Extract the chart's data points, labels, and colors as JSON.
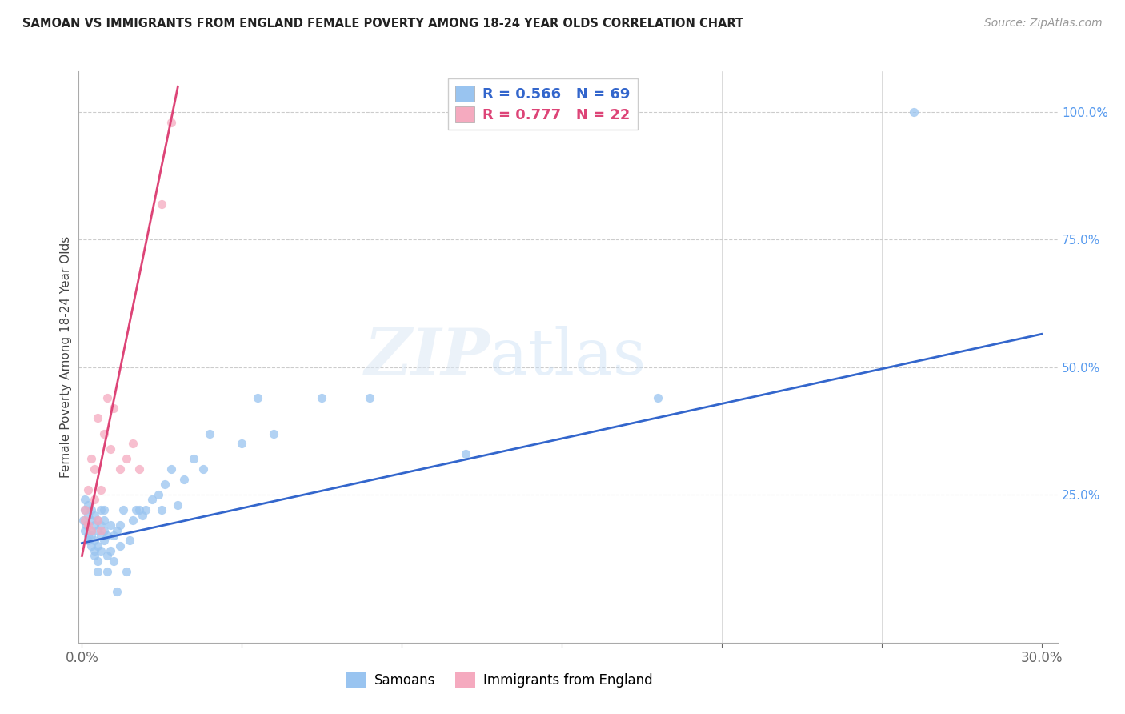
{
  "title": "SAMOAN VS IMMIGRANTS FROM ENGLAND FEMALE POVERTY AMONG 18-24 YEAR OLDS CORRELATION CHART",
  "source": "Source: ZipAtlas.com",
  "ylabel": "Female Poverty Among 18-24 Year Olds",
  "xlim_min": -0.001,
  "xlim_max": 0.305,
  "ylim_min": -0.04,
  "ylim_max": 1.08,
  "samoan_color": "#99c4f0",
  "england_color": "#f5aabf",
  "samoan_line_color": "#3366cc",
  "england_line_color": "#dd4477",
  "legend_samoan_R": "0.566",
  "legend_samoan_N": "69",
  "legend_england_R": "0.777",
  "legend_england_N": "22",
  "legend_label_samoan": "Samoans",
  "legend_label_england": "Immigrants from England",
  "watermark_zip": "ZIP",
  "watermark_atlas": "atlas",
  "background_color": "#ffffff",
  "samoans_x": [
    0.0005,
    0.001,
    0.001,
    0.001,
    0.0015,
    0.002,
    0.002,
    0.002,
    0.002,
    0.003,
    0.003,
    0.003,
    0.003,
    0.003,
    0.004,
    0.004,
    0.004,
    0.004,
    0.004,
    0.005,
    0.005,
    0.005,
    0.005,
    0.005,
    0.006,
    0.006,
    0.006,
    0.006,
    0.007,
    0.007,
    0.007,
    0.007,
    0.008,
    0.008,
    0.008,
    0.009,
    0.009,
    0.01,
    0.01,
    0.011,
    0.011,
    0.012,
    0.012,
    0.013,
    0.014,
    0.015,
    0.016,
    0.017,
    0.018,
    0.019,
    0.02,
    0.022,
    0.024,
    0.025,
    0.026,
    0.028,
    0.03,
    0.032,
    0.035,
    0.038,
    0.04,
    0.05,
    0.055,
    0.06,
    0.075,
    0.09,
    0.12,
    0.18,
    0.26
  ],
  "samoans_y": [
    0.2,
    0.22,
    0.18,
    0.24,
    0.19,
    0.17,
    0.16,
    0.21,
    0.23,
    0.15,
    0.18,
    0.2,
    0.22,
    0.17,
    0.14,
    0.19,
    0.21,
    0.16,
    0.13,
    0.15,
    0.18,
    0.2,
    0.1,
    0.12,
    0.17,
    0.19,
    0.14,
    0.22,
    0.16,
    0.18,
    0.2,
    0.22,
    0.1,
    0.13,
    0.17,
    0.14,
    0.19,
    0.12,
    0.17,
    0.18,
    0.06,
    0.15,
    0.19,
    0.22,
    0.1,
    0.16,
    0.2,
    0.22,
    0.22,
    0.21,
    0.22,
    0.24,
    0.25,
    0.22,
    0.27,
    0.3,
    0.23,
    0.28,
    0.32,
    0.3,
    0.37,
    0.35,
    0.44,
    0.37,
    0.44,
    0.44,
    0.33,
    0.44,
    1.0
  ],
  "england_x": [
    0.001,
    0.001,
    0.002,
    0.002,
    0.003,
    0.003,
    0.004,
    0.004,
    0.005,
    0.005,
    0.006,
    0.006,
    0.007,
    0.008,
    0.009,
    0.01,
    0.012,
    0.014,
    0.016,
    0.018,
    0.025,
    0.028
  ],
  "england_y": [
    0.2,
    0.22,
    0.19,
    0.26,
    0.18,
    0.32,
    0.24,
    0.3,
    0.2,
    0.4,
    0.18,
    0.26,
    0.37,
    0.44,
    0.34,
    0.42,
    0.3,
    0.32,
    0.35,
    0.3,
    0.82,
    0.98
  ],
  "samoan_line_x0": 0.0,
  "samoan_line_y0": 0.155,
  "samoan_line_x1": 0.3,
  "samoan_line_y1": 0.565,
  "england_line_x0": 0.0,
  "england_line_y0": 0.13,
  "england_line_x1": 0.03,
  "england_line_y1": 1.05
}
